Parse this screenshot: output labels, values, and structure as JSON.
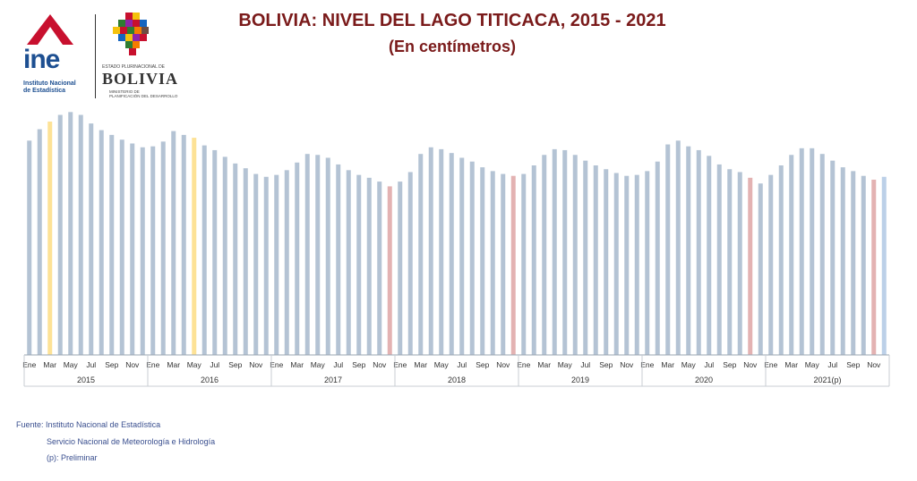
{
  "header": {
    "title": "BOLIVIA: NIVEL DEL LAGO TITICACA, 2015 - 2021",
    "subtitle": "(En centímetros)"
  },
  "logos": {
    "ine_word": "ine",
    "ine_sub1": "Instituto Nacional",
    "ine_sub2": "de Estadística",
    "bolivia_small": "ESTADO PLURINACIONAL DE",
    "bolivia_big": "BOLIVIA",
    "bolivia_ministry1": "MINISTERIO DE",
    "bolivia_ministry2": "PLANIFICACIÓN DEL DESARROLLO"
  },
  "footer": {
    "line1": "Fuente: Instituto Nacional de Estadística",
    "line2": "Servicio Nacional de Meteorología e  Hidrología",
    "line3": "(p): Preliminar"
  },
  "colors": {
    "bar_default": "#b4c3d4",
    "bar_max": "#fde296",
    "bar_min": "#e3b2b2",
    "bar_last": "#bcd0e8",
    "axis": "#9aa5b1",
    "title": "#7a1a1a"
  },
  "chart_data": {
    "type": "bar",
    "title": "BOLIVIA: NIVEL DEL LAGO TITICACA, 2015 - 2021",
    "subtitle": "(En centímetros)",
    "years": [
      "2015",
      "2016",
      "2017",
      "2018",
      "2019",
      "2020",
      "2021(p)"
    ],
    "month_labels": [
      "Ene",
      "",
      "Mar",
      "",
      "May",
      "",
      "Jul",
      "",
      "Sep",
      "",
      "Nov",
      ""
    ],
    "values": [
      225,
      237,
      245,
      252,
      255,
      252,
      243,
      236,
      231,
      226,
      222,
      218,
      219,
      224,
      235,
      231,
      228,
      220,
      215,
      208,
      201,
      196,
      190,
      187,
      189,
      194,
      202,
      211,
      210,
      207,
      200,
      194,
      189,
      186,
      182,
      177,
      182,
      192,
      211,
      218,
      216,
      212,
      207,
      203,
      197,
      193,
      190,
      188,
      190,
      199,
      210,
      216,
      215,
      210,
      204,
      199,
      195,
      191,
      188,
      189,
      193,
      203,
      221,
      225,
      219,
      215,
      209,
      200,
      195,
      192,
      186,
      180,
      189,
      199,
      210,
      217,
      217,
      211,
      204,
      197,
      193,
      188,
      184,
      187
    ],
    "highlight": {
      "max": [
        2,
        16
      ],
      "min": [
        35,
        47,
        70,
        82
      ],
      "last": [
        83
      ]
    },
    "ylim": [
      0,
      260
    ],
    "grid": false,
    "legend": "none"
  }
}
